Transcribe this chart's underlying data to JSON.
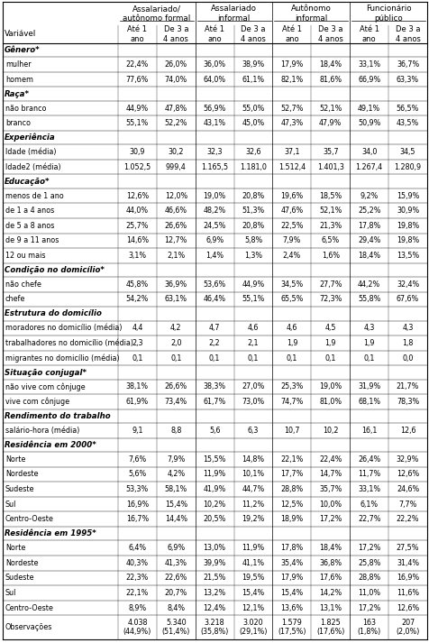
{
  "col_groups": [
    "Assalariado/\nautônomo formal",
    "Assalariado\ninformal",
    "Autônomo\ninformal",
    "Funcionário\npúblico"
  ],
  "rows": [
    {
      "label": "Gênero*",
      "values": [],
      "section": true
    },
    {
      "label": "mulher",
      "values": [
        "22,4%",
        "26,0%",
        "36,0%",
        "38,9%",
        "17,9%",
        "18,4%",
        "33,1%",
        "36,7%"
      ]
    },
    {
      "label": "homem",
      "values": [
        "77,6%",
        "74,0%",
        "64,0%",
        "61,1%",
        "82,1%",
        "81,6%",
        "66,9%",
        "63,3%"
      ]
    },
    {
      "label": "Raça*",
      "values": [],
      "section": true
    },
    {
      "label": "não branco",
      "values": [
        "44,9%",
        "47,8%",
        "56,9%",
        "55,0%",
        "52,7%",
        "52,1%",
        "49,1%",
        "56,5%"
      ]
    },
    {
      "label": "branco",
      "values": [
        "55,1%",
        "52,2%",
        "43,1%",
        "45,0%",
        "47,3%",
        "47,9%",
        "50,9%",
        "43,5%"
      ]
    },
    {
      "label": "Experiência",
      "values": [],
      "section": true
    },
    {
      "label": "Idade (média)",
      "values": [
        "30,9",
        "30,2",
        "32,3",
        "32,6",
        "37,1",
        "35,7",
        "34,0",
        "34,5"
      ]
    },
    {
      "label": "Idade2 (média)",
      "values": [
        "1.052,5",
        "999,4",
        "1.165,5",
        "1.181,0",
        "1.512,4",
        "1.401,3",
        "1.267,4",
        "1.280,9"
      ]
    },
    {
      "label": "Educação*",
      "values": [],
      "section": true
    },
    {
      "label": "menos de 1 ano",
      "values": [
        "12,6%",
        "12,0%",
        "19,0%",
        "20,8%",
        "19,6%",
        "18,5%",
        "9,2%",
        "15,9%"
      ]
    },
    {
      "label": "de 1 a 4 anos",
      "values": [
        "44,0%",
        "46,6%",
        "48,2%",
        "51,3%",
        "47,6%",
        "52,1%",
        "25,2%",
        "30,9%"
      ]
    },
    {
      "label": "de 5 a 8 anos",
      "values": [
        "25,7%",
        "26,6%",
        "24,5%",
        "20,8%",
        "22,5%",
        "21,3%",
        "17,8%",
        "19,8%"
      ]
    },
    {
      "label": "de 9 a 11 anos",
      "values": [
        "14,6%",
        "12,7%",
        "6,9%",
        "5,8%",
        "7,9%",
        "6,5%",
        "29,4%",
        "19,8%"
      ]
    },
    {
      "label": "12 ou mais",
      "values": [
        "3,1%",
        "2,1%",
        "1,4%",
        "1,3%",
        "2,4%",
        "1,6%",
        "18,4%",
        "13,5%"
      ]
    },
    {
      "label": "Condição no domicílio*",
      "values": [],
      "section": true
    },
    {
      "label": "não chefe",
      "values": [
        "45,8%",
        "36,9%",
        "53,6%",
        "44,9%",
        "34,5%",
        "27,7%",
        "44,2%",
        "32,4%"
      ]
    },
    {
      "label": "chefe",
      "values": [
        "54,2%",
        "63,1%",
        "46,4%",
        "55,1%",
        "65,5%",
        "72,3%",
        "55,8%",
        "67,6%"
      ]
    },
    {
      "label": "Estrutura do domicílio",
      "values": [],
      "section": true
    },
    {
      "label": "moradores no domicílio (média)",
      "values": [
        "4,4",
        "4,2",
        "4,7",
        "4,6",
        "4,6",
        "4,5",
        "4,3",
        "4,3"
      ]
    },
    {
      "label": "trabalhadores no domicílio (média)",
      "values": [
        "2,3",
        "2,0",
        "2,2",
        "2,1",
        "1,9",
        "1,9",
        "1,9",
        "1,8"
      ]
    },
    {
      "label": "migrantes no domicílio (média)",
      "values": [
        "0,1",
        "0,1",
        "0,1",
        "0,1",
        "0,1",
        "0,1",
        "0,1",
        "0,0"
      ]
    },
    {
      "label": "Situação conjugal*",
      "values": [],
      "section": true
    },
    {
      "label": "não vive com cônjuge",
      "values": [
        "38,1%",
        "26,6%",
        "38,3%",
        "27,0%",
        "25,3%",
        "19,0%",
        "31,9%",
        "21,7%"
      ]
    },
    {
      "label": "vive com cônjuge",
      "values": [
        "61,9%",
        "73,4%",
        "61,7%",
        "73,0%",
        "74,7%",
        "81,0%",
        "68,1%",
        "78,3%"
      ]
    },
    {
      "label": "Rendimento do trabalho",
      "values": [],
      "section": true
    },
    {
      "label": "salário-hora (média)",
      "values": [
        "9,1",
        "8,8",
        "5,6",
        "6,3",
        "10,7",
        "10,2",
        "16,1",
        "12,6"
      ]
    },
    {
      "label": "Residência em 2000*",
      "values": [],
      "section": true
    },
    {
      "label": "Norte",
      "values": [
        "7,6%",
        "7,9%",
        "15,5%",
        "14,8%",
        "22,1%",
        "22,4%",
        "26,4%",
        "32,9%"
      ]
    },
    {
      "label": "Nordeste",
      "values": [
        "5,6%",
        "4,2%",
        "11,9%",
        "10,1%",
        "17,7%",
        "14,7%",
        "11,7%",
        "12,6%"
      ]
    },
    {
      "label": "Sudeste",
      "values": [
        "53,3%",
        "58,1%",
        "41,9%",
        "44,7%",
        "28,8%",
        "35,7%",
        "33,1%",
        "24,6%"
      ]
    },
    {
      "label": "Sul",
      "values": [
        "16,9%",
        "15,4%",
        "10,2%",
        "11,2%",
        "12,5%",
        "10,0%",
        "6,1%",
        "7,7%"
      ]
    },
    {
      "label": "Centro-Oeste",
      "values": [
        "16,7%",
        "14,4%",
        "20,5%",
        "19,2%",
        "18,9%",
        "17,2%",
        "22,7%",
        "22,2%"
      ]
    },
    {
      "label": "Residência em 1995*",
      "values": [],
      "section": true
    },
    {
      "label": "Norte",
      "values": [
        "6,4%",
        "6,9%",
        "13,0%",
        "11,9%",
        "17,8%",
        "18,4%",
        "17,2%",
        "27,5%"
      ]
    },
    {
      "label": "Nordeste",
      "values": [
        "40,3%",
        "41,3%",
        "39,9%",
        "41,1%",
        "35,4%",
        "36,8%",
        "25,8%",
        "31,4%"
      ]
    },
    {
      "label": "Sudeste",
      "values": [
        "22,3%",
        "22,6%",
        "21,5%",
        "19,5%",
        "17,9%",
        "17,6%",
        "28,8%",
        "16,9%"
      ]
    },
    {
      "label": "Sul",
      "values": [
        "22,1%",
        "20,7%",
        "13,2%",
        "15,4%",
        "15,4%",
        "14,2%",
        "11,0%",
        "11,6%"
      ]
    },
    {
      "label": "Centro-Oeste",
      "values": [
        "8,9%",
        "8,4%",
        "12,4%",
        "12,1%",
        "13,6%",
        "13,1%",
        "17,2%",
        "12,6%"
      ]
    },
    {
      "label": "Observações",
      "values": [
        "4.038\n(44,9%)",
        "5.340\n(51,4%)",
        "3.218\n(35,8%)",
        "3.020\n(29,1%)",
        "1.579\n(17,5%)",
        "1.825\n(17,6%)",
        "163\n(1,8%)",
        "207\n(2,0%)"
      ],
      "tall": true
    }
  ]
}
